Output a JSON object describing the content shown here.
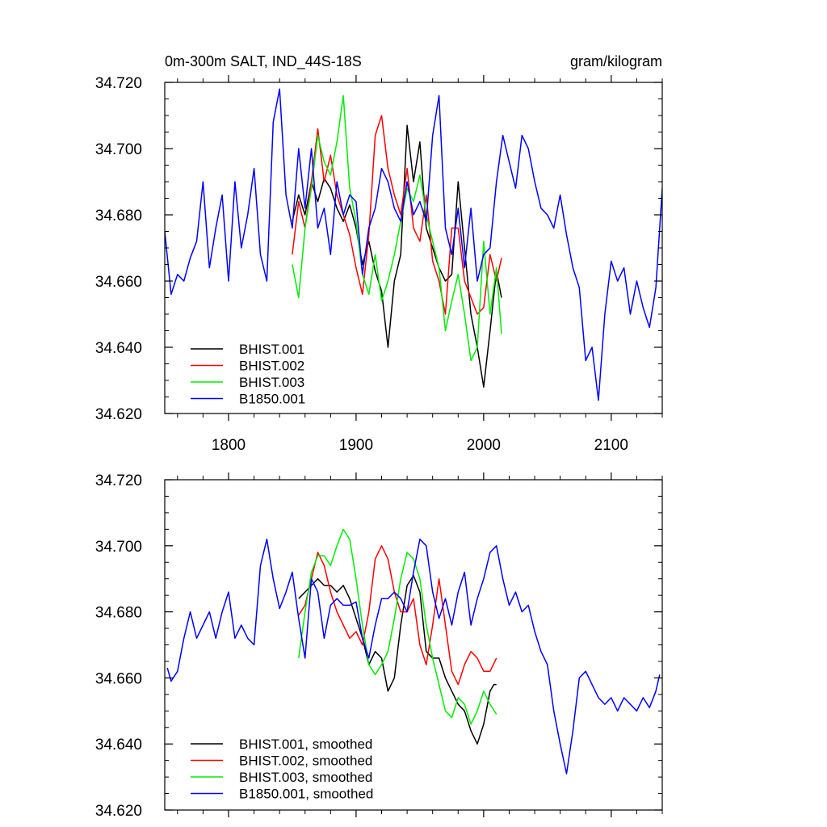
{
  "chart_data": [
    {
      "type": "line",
      "title": "0m-300m SALT, IND_44S-18S",
      "units": "gram/kilogram",
      "xlim": [
        1750,
        2140
      ],
      "ylim": [
        34.62,
        34.72
      ],
      "x_ticks": [
        1800,
        1900,
        2000,
        2100
      ],
      "x_tick_labels": [
        "1800",
        "1900",
        "2000",
        "2100"
      ],
      "y_ticks": [
        34.62,
        34.64,
        34.66,
        34.68,
        34.7,
        34.72
      ],
      "y_tick_labels": [
        "34.620",
        "34.640",
        "34.660",
        "34.680",
        "34.700",
        "34.720"
      ],
      "legend_position": "bottom-left",
      "series": [
        {
          "name": "BHIST.001",
          "color": "#000000",
          "x": [
            1850,
            1855,
            1860,
            1865,
            1870,
            1875,
            1880,
            1885,
            1890,
            1895,
            1900,
            1905,
            1910,
            1915,
            1920,
            1925,
            1930,
            1935,
            1940,
            1945,
            1950,
            1955,
            1960,
            1965,
            1970,
            1975,
            1980,
            1985,
            1990,
            1995,
            2000,
            2005,
            2010,
            2014
          ],
          "y": [
            34.678,
            34.686,
            34.68,
            34.69,
            34.684,
            34.691,
            34.688,
            34.682,
            34.678,
            34.683,
            34.676,
            34.665,
            34.672,
            34.663,
            34.657,
            34.64,
            34.66,
            34.668,
            34.707,
            34.69,
            34.702,
            34.676,
            34.67,
            34.664,
            34.66,
            34.662,
            34.69,
            34.67,
            34.65,
            34.64,
            34.628,
            34.645,
            34.663,
            34.655
          ]
        },
        {
          "name": "BHIST.002",
          "color": "#ff0000",
          "x": [
            1850,
            1855,
            1860,
            1865,
            1870,
            1875,
            1880,
            1885,
            1890,
            1895,
            1900,
            1905,
            1910,
            1915,
            1920,
            1925,
            1930,
            1935,
            1940,
            1945,
            1950,
            1955,
            1960,
            1965,
            1970,
            1975,
            1980,
            1985,
            1990,
            1995,
            2000,
            2005,
            2010,
            2014
          ],
          "y": [
            34.668,
            34.684,
            34.676,
            34.69,
            34.706,
            34.69,
            34.698,
            34.686,
            34.68,
            34.674,
            34.664,
            34.656,
            34.674,
            34.704,
            34.71,
            34.694,
            34.686,
            34.68,
            34.694,
            34.676,
            34.672,
            34.686,
            34.666,
            34.66,
            34.65,
            34.676,
            34.676,
            34.66,
            34.655,
            34.65,
            34.652,
            34.668,
            34.66,
            34.667
          ]
        },
        {
          "name": "BHIST.003",
          "color": "#00ee00",
          "x": [
            1850,
            1855,
            1860,
            1865,
            1870,
            1875,
            1880,
            1885,
            1890,
            1895,
            1900,
            1905,
            1910,
            1915,
            1920,
            1925,
            1930,
            1935,
            1940,
            1945,
            1950,
            1955,
            1960,
            1965,
            1970,
            1975,
            1980,
            1985,
            1990,
            1995,
            2000,
            2005,
            2010,
            2014
          ],
          "y": [
            34.665,
            34.655,
            34.676,
            34.688,
            34.704,
            34.696,
            34.692,
            34.702,
            34.716,
            34.688,
            34.678,
            34.662,
            34.656,
            34.668,
            34.654,
            34.66,
            34.668,
            34.678,
            34.688,
            34.684,
            34.692,
            34.68,
            34.672,
            34.664,
            34.645,
            34.654,
            34.662,
            34.65,
            34.636,
            34.64,
            34.672,
            34.65,
            34.664,
            34.644
          ]
        },
        {
          "name": "B1850.001",
          "color": "#0000ff",
          "x": [
            1750,
            1755,
            1760,
            1765,
            1770,
            1775,
            1780,
            1785,
            1790,
            1795,
            1800,
            1805,
            1810,
            1815,
            1820,
            1825,
            1830,
            1835,
            1840,
            1845,
            1850,
            1855,
            1860,
            1865,
            1870,
            1875,
            1880,
            1885,
            1890,
            1895,
            1900,
            1905,
            1910,
            1915,
            1920,
            1925,
            1930,
            1935,
            1940,
            1945,
            1950,
            1955,
            1960,
            1965,
            1970,
            1975,
            1980,
            1985,
            1990,
            1995,
            2000,
            2005,
            2010,
            2015,
            2020,
            2025,
            2030,
            2035,
            2040,
            2045,
            2050,
            2055,
            2060,
            2065,
            2070,
            2075,
            2080,
            2085,
            2090,
            2095,
            2100,
            2105,
            2110,
            2115,
            2120,
            2125,
            2130,
            2135,
            2140
          ],
          "y": [
            34.675,
            34.656,
            34.662,
            34.66,
            34.667,
            34.672,
            34.69,
            34.664,
            34.676,
            34.686,
            34.66,
            34.69,
            34.67,
            34.68,
            34.694,
            34.668,
            34.66,
            34.708,
            34.718,
            34.686,
            34.676,
            34.7,
            34.682,
            34.7,
            34.676,
            34.682,
            34.668,
            34.69,
            34.68,
            34.686,
            34.684,
            34.662,
            34.676,
            34.682,
            34.694,
            34.69,
            34.682,
            34.678,
            34.69,
            34.68,
            34.684,
            34.678,
            34.704,
            34.716,
            34.676,
            34.668,
            34.682,
            34.664,
            34.682,
            34.66,
            34.668,
            34.67,
            34.69,
            34.704,
            34.696,
            34.688,
            34.704,
            34.7,
            34.69,
            34.682,
            34.68,
            34.676,
            34.686,
            34.674,
            34.664,
            34.658,
            34.636,
            34.64,
            34.624,
            34.65,
            34.666,
            34.66,
            34.664,
            34.65,
            34.66,
            34.652,
            34.646,
            34.658,
            34.688
          ]
        }
      ]
    },
    {
      "type": "line",
      "xlim": [
        1750,
        2140
      ],
      "ylim": [
        34.62,
        34.72
      ],
      "x_ticks": [
        1800,
        1900,
        2000,
        2100
      ],
      "y_ticks": [
        34.62,
        34.64,
        34.66,
        34.68,
        34.7,
        34.72
      ],
      "y_tick_labels": [
        "34.620",
        "34.640",
        "34.660",
        "34.680",
        "34.700",
        "34.720"
      ],
      "legend_position": "bottom-left",
      "series": [
        {
          "name": "BHIST.001, smoothed",
          "color": "#000000",
          "x": [
            1855,
            1860,
            1865,
            1870,
            1875,
            1880,
            1885,
            1890,
            1895,
            1900,
            1905,
            1910,
            1915,
            1920,
            1925,
            1930,
            1935,
            1940,
            1945,
            1950,
            1955,
            1960,
            1965,
            1970,
            1975,
            1980,
            1985,
            1990,
            1995,
            2000,
            2005,
            2008,
            2010
          ],
          "y": [
            34.684,
            34.686,
            34.688,
            34.69,
            34.688,
            34.688,
            34.686,
            34.688,
            34.684,
            34.678,
            34.672,
            34.664,
            34.668,
            34.666,
            34.656,
            34.66,
            34.676,
            34.688,
            34.691,
            34.686,
            34.668,
            34.666,
            34.666,
            34.66,
            34.656,
            34.652,
            34.65,
            34.644,
            34.64,
            34.646,
            34.656,
            34.658,
            34.658
          ]
        },
        {
          "name": "BHIST.002, smoothed",
          "color": "#ff0000",
          "x": [
            1855,
            1860,
            1865,
            1870,
            1875,
            1880,
            1885,
            1890,
            1895,
            1900,
            1905,
            1910,
            1915,
            1920,
            1925,
            1930,
            1935,
            1940,
            1945,
            1950,
            1955,
            1960,
            1965,
            1970,
            1975,
            1980,
            1985,
            1990,
            1995,
            2000,
            2005,
            2010
          ],
          "y": [
            34.679,
            34.682,
            34.69,
            34.698,
            34.694,
            34.686,
            34.68,
            34.676,
            34.672,
            34.674,
            34.67,
            34.68,
            34.696,
            34.7,
            34.696,
            34.686,
            34.68,
            34.68,
            34.684,
            34.67,
            34.664,
            34.676,
            34.69,
            34.676,
            34.662,
            34.658,
            34.664,
            34.668,
            34.666,
            34.662,
            34.662,
            34.666
          ]
        },
        {
          "name": "BHIST.003, smoothed",
          "color": "#00ee00",
          "x": [
            1855,
            1860,
            1865,
            1870,
            1875,
            1880,
            1885,
            1890,
            1895,
            1900,
            1905,
            1910,
            1915,
            1920,
            1925,
            1930,
            1935,
            1940,
            1945,
            1950,
            1955,
            1960,
            1965,
            1970,
            1975,
            1980,
            1985,
            1990,
            1995,
            2000,
            2005,
            2010
          ],
          "y": [
            34.666,
            34.68,
            34.692,
            34.697,
            34.697,
            34.694,
            34.7,
            34.705,
            34.702,
            34.69,
            34.676,
            34.664,
            34.661,
            34.664,
            34.668,
            34.678,
            34.69,
            34.698,
            34.696,
            34.69,
            34.676,
            34.666,
            34.658,
            34.65,
            34.648,
            34.654,
            34.652,
            34.646,
            34.65,
            34.656,
            34.652,
            34.649
          ]
        },
        {
          "name": "B1850.001, smoothed",
          "color": "#0000ff",
          "x": [
            1752,
            1755,
            1760,
            1765,
            1770,
            1775,
            1780,
            1785,
            1790,
            1795,
            1800,
            1805,
            1810,
            1815,
            1820,
            1825,
            1830,
            1835,
            1840,
            1845,
            1850,
            1855,
            1860,
            1865,
            1870,
            1875,
            1880,
            1885,
            1890,
            1895,
            1900,
            1905,
            1910,
            1915,
            1920,
            1925,
            1930,
            1935,
            1940,
            1945,
            1950,
            1955,
            1960,
            1965,
            1970,
            1975,
            1980,
            1985,
            1990,
            1995,
            2000,
            2005,
            2010,
            2015,
            2020,
            2025,
            2030,
            2035,
            2040,
            2045,
            2050,
            2055,
            2060,
            2065,
            2070,
            2075,
            2080,
            2085,
            2090,
            2095,
            2100,
            2105,
            2110,
            2115,
            2120,
            2125,
            2130,
            2135,
            2138
          ],
          "y": [
            34.663,
            34.659,
            34.662,
            34.672,
            34.68,
            34.672,
            34.676,
            34.68,
            34.672,
            34.68,
            34.686,
            34.672,
            34.676,
            34.672,
            34.67,
            34.694,
            34.702,
            34.69,
            34.681,
            34.686,
            34.692,
            34.678,
            34.666,
            34.69,
            34.686,
            34.672,
            34.682,
            34.684,
            34.682,
            34.682,
            34.683,
            34.672,
            34.666,
            34.676,
            34.684,
            34.684,
            34.686,
            34.684,
            34.68,
            34.692,
            34.702,
            34.7,
            34.686,
            34.678,
            34.684,
            34.676,
            34.686,
            34.692,
            34.676,
            34.684,
            34.69,
            34.698,
            34.7,
            34.69,
            34.682,
            34.686,
            34.68,
            34.682,
            34.674,
            34.668,
            34.664,
            34.65,
            34.64,
            34.631,
            34.644,
            34.66,
            34.662,
            34.658,
            34.654,
            34.652,
            34.654,
            34.65,
            34.654,
            34.652,
            34.65,
            34.654,
            34.651,
            34.656,
            34.661
          ]
        }
      ]
    }
  ]
}
